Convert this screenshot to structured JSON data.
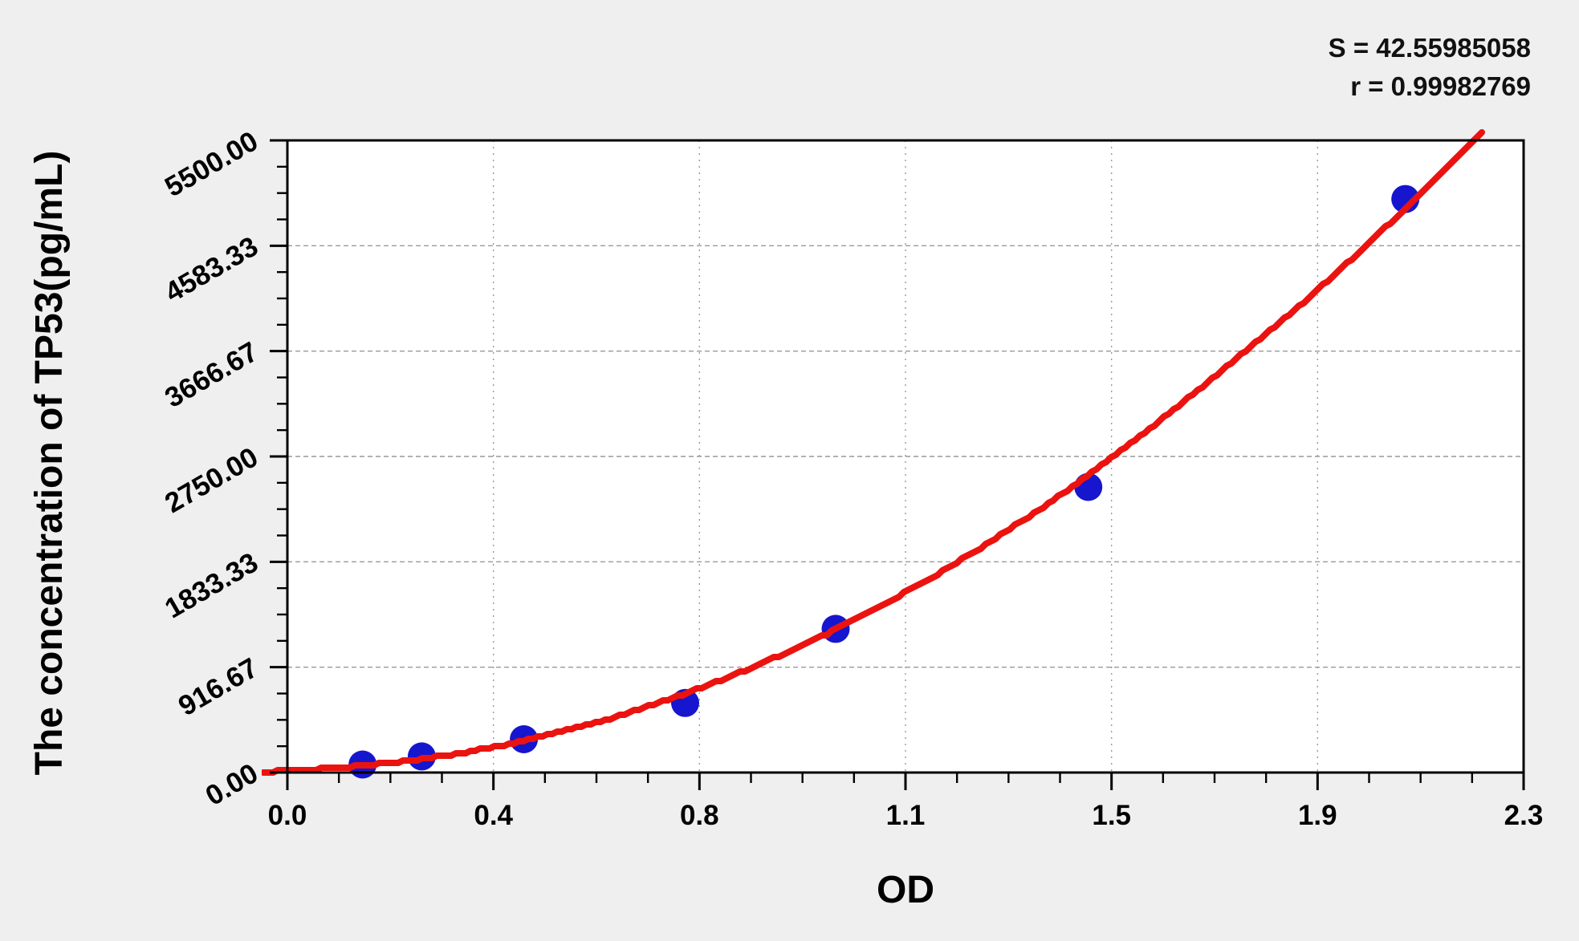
{
  "stats": {
    "s_line": "S = 42.55985058",
    "r_line": "r = 0.99982769"
  },
  "chart_data": {
    "type": "scatter",
    "title": "",
    "xlabel": "OD",
    "ylabel": "The concentration of TP53(pg/mL)",
    "x_range": [
      0,
      2.3
    ],
    "y_range": [
      0,
      5500
    ],
    "x_tick_labels": [
      "0.0",
      "0.4",
      "0.8",
      "1.1",
      "1.5",
      "1.9",
      "2.3"
    ],
    "y_tick_labels": [
      "0.00",
      "916.67",
      "1833.33",
      "2750.00",
      "3666.67",
      "4583.33",
      "5500.00"
    ],
    "minor_ticks_per_interval": 3,
    "grid": "dashed gray gridlines at major ticks",
    "legend": "none",
    "fit_stats": {
      "S": 42.55985058,
      "r": 0.99982769
    },
    "points": [
      {
        "od": 0.14,
        "conc": 70
      },
      {
        "od": 0.25,
        "conc": 140
      },
      {
        "od": 0.44,
        "conc": 290
      },
      {
        "od": 0.74,
        "conc": 605
      },
      {
        "od": 1.02,
        "conc": 1250
      },
      {
        "od": 1.49,
        "conc": 2485
      },
      {
        "od": 2.08,
        "conc": 4990
      }
    ],
    "fit_curve": {
      "samples": [
        [
          -0.045,
          5
        ],
        [
          0,
          15
        ],
        [
          0.1,
          42
        ],
        [
          0.2,
          88
        ],
        [
          0.3,
          150
        ],
        [
          0.4,
          235
        ],
        [
          0.5,
          345
        ],
        [
          0.6,
          470
        ],
        [
          0.7,
          620
        ],
        [
          0.8,
          790
        ],
        [
          0.9,
          985
        ],
        [
          1.0,
          1195
        ],
        [
          1.1,
          1440
        ],
        [
          1.2,
          1700
        ],
        [
          1.3,
          1985
        ],
        [
          1.4,
          2290
        ],
        [
          1.5,
          2620
        ],
        [
          1.6,
          2975
        ],
        [
          1.7,
          3350
        ],
        [
          1.8,
          3740
        ],
        [
          1.9,
          4130
        ],
        [
          2.0,
          4550
        ],
        [
          2.1,
          5000
        ],
        [
          2.2,
          5470
        ],
        [
          2.25,
          5710
        ]
      ]
    },
    "colors": {
      "background": "#efefef",
      "plot_background": "#ffffff",
      "axis": "#000000",
      "grid": "#999999",
      "point": "#1616ce",
      "curve": "#eb1310"
    }
  }
}
